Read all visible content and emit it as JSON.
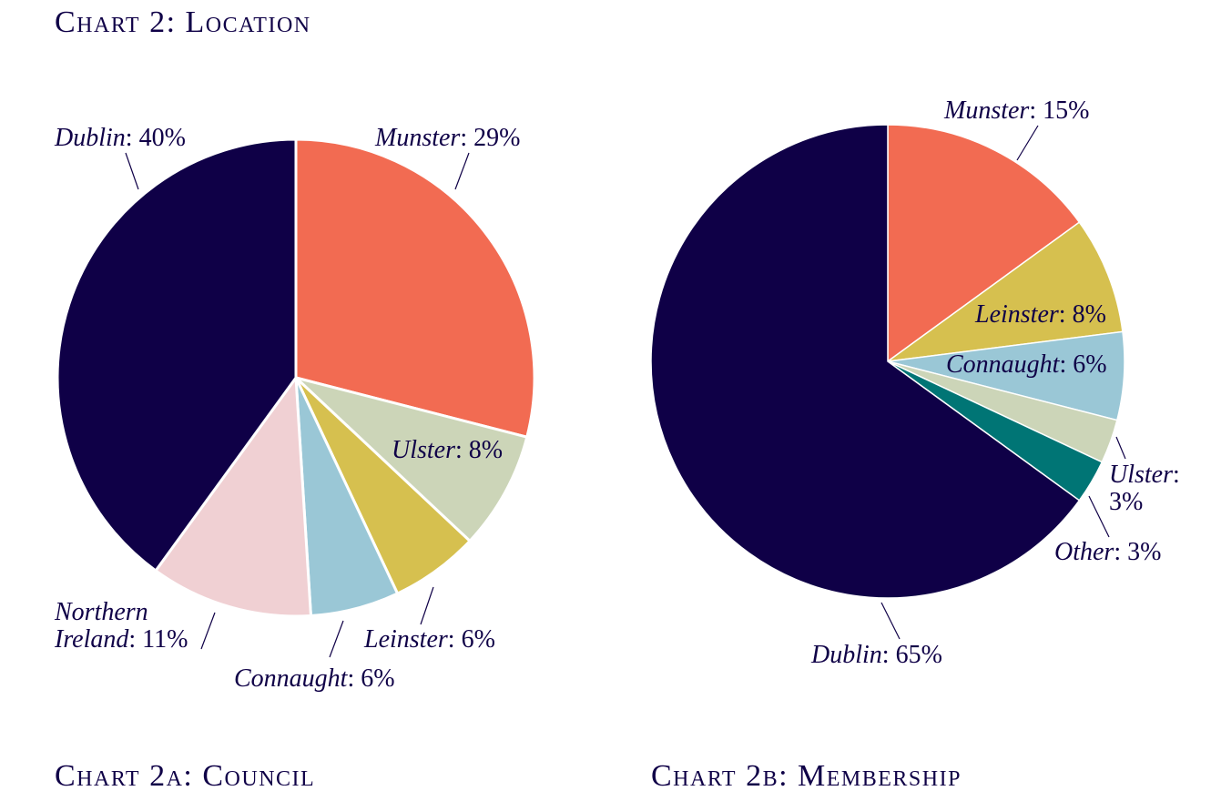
{
  "title": "Chart 2: Location",
  "chart_data": [
    {
      "type": "pie",
      "title": "Chart 2a: Council",
      "label_separator": ":",
      "categories": [
        "Munster",
        "Ulster",
        "Leinster",
        "Connaught",
        "Northern Ireland",
        "Dublin"
      ],
      "values": [
        29,
        8,
        6,
        6,
        11,
        40
      ],
      "value_labels": [
        "29%",
        "8%",
        "6%",
        "6%",
        "11%",
        "40%"
      ],
      "colors": [
        "#f26b52",
        "#ccd5b8",
        "#d6c04f",
        "#9ac7d6",
        "#f0d0d3",
        "#0f0047"
      ]
    },
    {
      "type": "pie",
      "title": "Chart 2b: Membership",
      "label_separator": ":",
      "categories": [
        "Munster",
        "Leinster",
        "Connaught",
        "Ulster",
        "Other",
        "Dublin"
      ],
      "values": [
        15,
        8,
        6,
        3,
        3,
        65
      ],
      "value_labels": [
        "15%",
        "8%",
        "6%",
        "3%",
        "3%",
        "65%"
      ],
      "colors": [
        "#f26b52",
        "#d6c04f",
        "#9ac7d6",
        "#ccd5b8",
        "#007575",
        "#0f0047"
      ]
    }
  ]
}
